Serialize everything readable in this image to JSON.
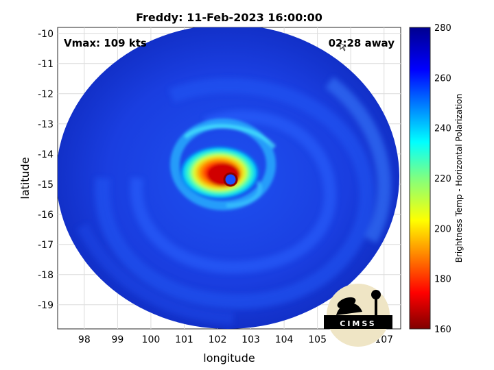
{
  "title": "Freddy: 11-Feb-2023 16:00:00",
  "annotations": {
    "vmax": "Vmax: 109 kts",
    "away": "02:28 away"
  },
  "axes": {
    "xlabel": "longitude",
    "ylabel": "latitude",
    "xlim": [
      97.2,
      107.5
    ],
    "ylim": [
      -19.8,
      -9.8
    ],
    "xticks": [
      "98",
      "99",
      "100",
      "101",
      "102",
      "103",
      "104",
      "105",
      "106",
      "107"
    ],
    "yticks": [
      "-10",
      "-11",
      "-12",
      "-13",
      "-14",
      "-15",
      "-16",
      "-17",
      "-18",
      "-19"
    ],
    "grid": true
  },
  "colorbar": {
    "label": "Brightness Temp - Horizontal Polarization",
    "min": 160,
    "max": 280,
    "ticks": [
      "280",
      "260",
      "240",
      "220",
      "200",
      "180",
      "160"
    ],
    "colormap": "jet"
  },
  "storm": {
    "center_lon": 102.4,
    "center_lat": -14.8
  },
  "logo": {
    "text": "CIMSS",
    "background": "#efe5c5",
    "foreground": "#000000"
  },
  "colors": {
    "background_blue": "#1a3ee0",
    "eye_blue": "#2050ff",
    "eyewall_red": "#c00000"
  }
}
